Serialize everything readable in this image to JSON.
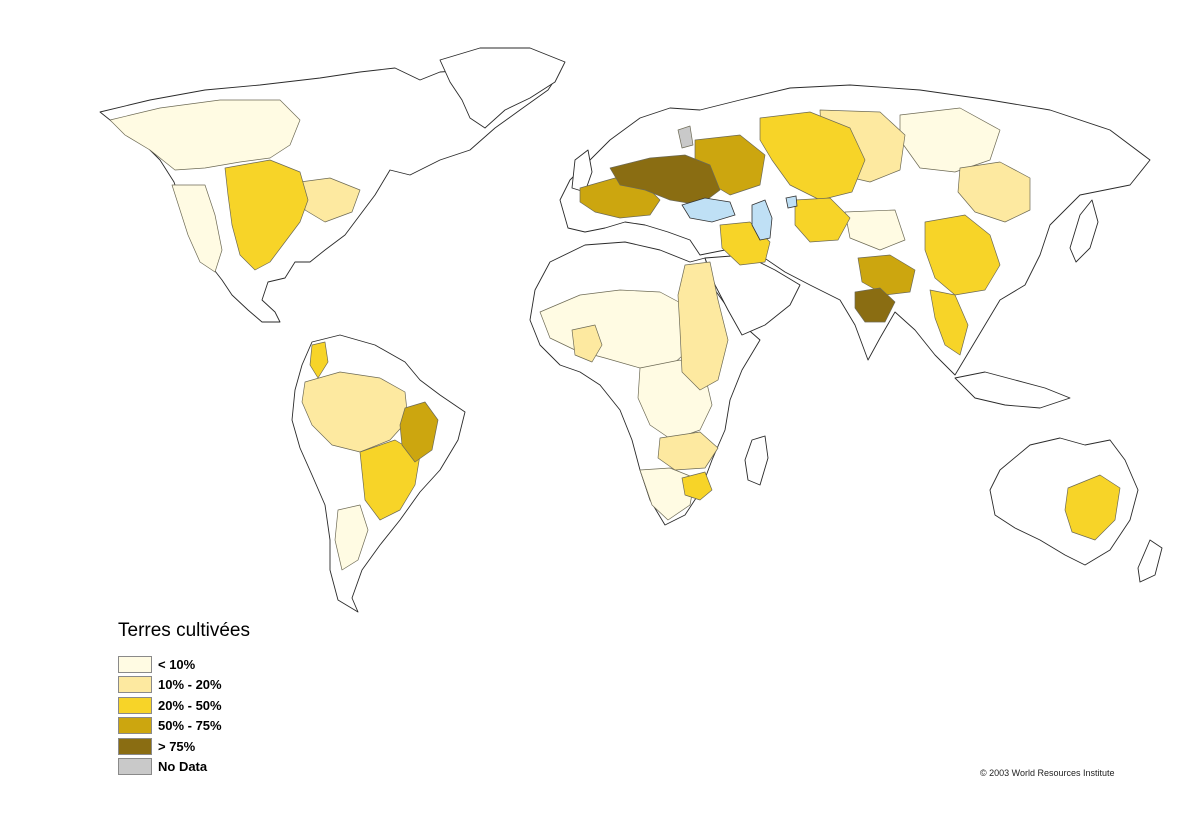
{
  "legend": {
    "title": "Terres cultivées",
    "items": [
      {
        "label": "< 10%",
        "color": "#fffbe3"
      },
      {
        "label": "10% - 20%",
        "color": "#fde9a0"
      },
      {
        "label": "20% - 50%",
        "color": "#f7d428"
      },
      {
        "label": "50% - 75%",
        "color": "#cca60f"
      },
      {
        "label": "> 75%",
        "color": "#8a6d12"
      },
      {
        "label": "No Data",
        "color": "#c9c9c9"
      }
    ]
  },
  "copyright": "© 2003 World Resources Institute",
  "colors": {
    "land": "#ffffff",
    "water": "#bfe0f5"
  }
}
